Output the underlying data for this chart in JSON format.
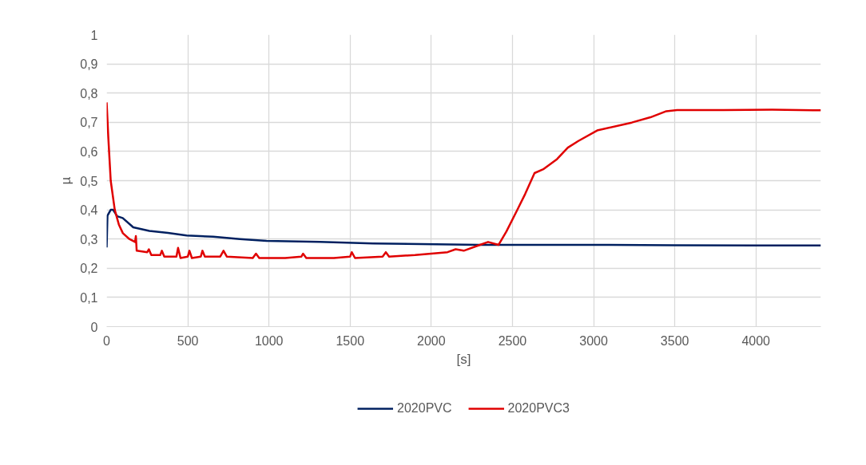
{
  "chart_data": {
    "type": "line",
    "xlabel": "[s]",
    "ylabel": "µ",
    "xlim": [
      0,
      4400
    ],
    "xticks": [
      0,
      500,
      1000,
      1500,
      2000,
      2500,
      3000,
      3500,
      4000
    ],
    "ylim": [
      0,
      1
    ],
    "yticks": [
      0,
      {
        "value": 0.1,
        "label": "0,1"
      },
      {
        "value": 0.2,
        "label": "0,2"
      },
      {
        "value": 0.3,
        "label": "0,3"
      },
      {
        "value": 0.4,
        "label": "0,4"
      },
      {
        "value": 0.5,
        "label": "0,5"
      },
      {
        "value": 0.6,
        "label": "0,6"
      },
      {
        "value": 0.7,
        "label": "0,7"
      },
      {
        "value": 0.8,
        "label": "0,8"
      },
      {
        "value": 0.9,
        "label": "0,9"
      },
      1
    ],
    "grid": true,
    "legend": "bottom",
    "marker": "none",
    "line_style": "solid",
    "series": [
      {
        "name": "2020PVC",
        "color": "#002060",
        "x": [
          0,
          5,
          25,
          40,
          65,
          99,
          164,
          263,
          378,
          493,
          657,
          821,
          985,
          1314,
          1642,
          2299,
          3000,
          3500,
          4000,
          4400
        ],
        "values": [
          0.271,
          0.38,
          0.4,
          0.4,
          0.378,
          0.372,
          0.34,
          0.328,
          0.321,
          0.312,
          0.308,
          0.3,
          0.294,
          0.29,
          0.285,
          0.28,
          0.28,
          0.279,
          0.278,
          0.278
        ]
      },
      {
        "name": "2020PVC3",
        "color": "#e00000",
        "x": [
          0,
          10,
          25,
          50,
          75,
          100,
          140,
          175,
          180,
          185,
          250,
          260,
          275,
          330,
          340,
          355,
          430,
          440,
          455,
          500,
          510,
          525,
          580,
          590,
          605,
          700,
          720,
          740,
          900,
          920,
          940,
          1100,
          1200,
          1210,
          1230,
          1400,
          1500,
          1510,
          1530,
          1700,
          1720,
          1740,
          1900,
          2000,
          2100,
          2150,
          2200,
          2300,
          2350,
          2414,
          2463,
          2529,
          2578,
          2636,
          2693,
          2775,
          2841,
          2906,
          3022,
          3235,
          3350,
          3448,
          3514,
          3800,
          4100,
          4400
        ],
        "values": [
          0.768,
          0.65,
          0.5,
          0.4,
          0.35,
          0.32,
          0.3,
          0.29,
          0.31,
          0.26,
          0.255,
          0.265,
          0.245,
          0.245,
          0.26,
          0.24,
          0.24,
          0.27,
          0.235,
          0.24,
          0.26,
          0.235,
          0.24,
          0.26,
          0.24,
          0.24,
          0.26,
          0.24,
          0.235,
          0.25,
          0.235,
          0.235,
          0.24,
          0.25,
          0.235,
          0.235,
          0.24,
          0.255,
          0.235,
          0.24,
          0.255,
          0.24,
          0.245,
          0.25,
          0.255,
          0.265,
          0.26,
          0.28,
          0.29,
          0.28,
          0.326,
          0.399,
          0.454,
          0.526,
          0.54,
          0.574,
          0.613,
          0.636,
          0.672,
          0.699,
          0.717,
          0.738,
          0.742,
          0.742,
          0.743,
          0.741
        ]
      }
    ]
  }
}
